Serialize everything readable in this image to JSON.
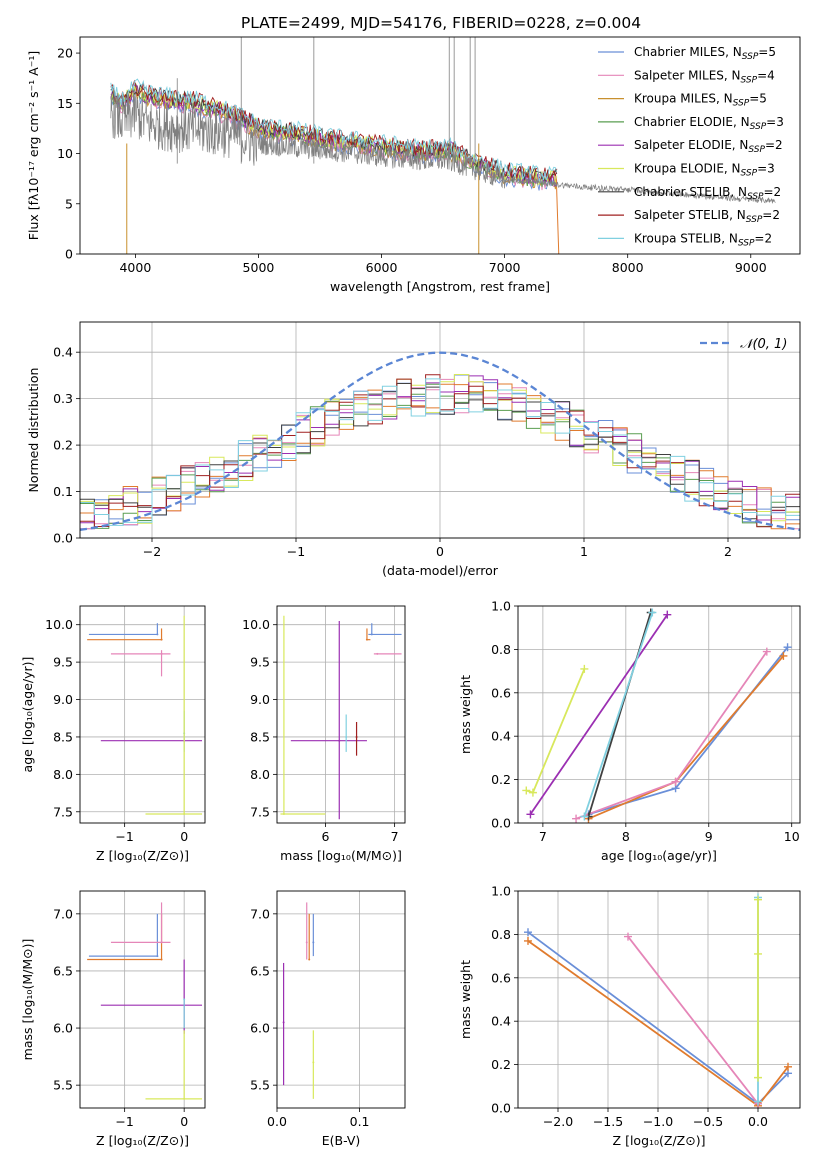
{
  "figure_title": "PLATE=2499, MJD=54176, FIBERID=0228, z=0.004",
  "colors": {
    "chabrier_miles": "#6a8fd8",
    "salpeter_miles": "#e586b8",
    "kroupa_miles": "#c8902e",
    "chabrier_elodie": "#5a9e50",
    "salpeter_elodie": "#9b2fb2",
    "kroupa_elodie": "#d8e85c",
    "chabrier_stelib": "#404040",
    "salpeter_stelib": "#a02020",
    "kroupa_stelib": "#80d0e0",
    "orange": "#e07b2e",
    "data": "#808080",
    "grid": "#b0b0b0"
  },
  "chart_data": [
    {
      "id": "spectrum",
      "type": "line",
      "title": "PLATE=2499, MJD=54176, FIBERID=0228, z=0.004",
      "xlabel": "wavelength [Angstrom, rest frame]",
      "ylabel": "Flux [fλ10⁻¹⁷ erg cm⁻² s⁻¹ A⁻¹]",
      "xlim": [
        3550,
        9400
      ],
      "ylim": [
        0,
        21.6
      ],
      "xticks": [
        4000,
        5000,
        6000,
        7000,
        8000,
        9000
      ],
      "yticks": [
        0,
        5,
        10,
        15,
        20
      ],
      "grid": false,
      "legend_position": "top-right",
      "legend": [
        {
          "label": "Chabrier MILES, N",
          "sub": "SSP",
          "post": "=5",
          "color_key": "chabrier_miles"
        },
        {
          "label": "Salpeter MILES, N",
          "sub": "SSP",
          "post": "=4",
          "color_key": "salpeter_miles"
        },
        {
          "label": "Kroupa MILES, N",
          "sub": "SSP",
          "post": "=5",
          "color_key": "kroupa_miles"
        },
        {
          "label": "Chabrier ELODIE, N",
          "sub": "SSP",
          "post": "=3",
          "color_key": "chabrier_elodie"
        },
        {
          "label": "Salpeter ELODIE, N",
          "sub": "SSP",
          "post": "=2",
          "color_key": "salpeter_elodie"
        },
        {
          "label": "Kroupa ELODIE, N",
          "sub": "SSP",
          "post": "=3",
          "color_key": "kroupa_elodie"
        },
        {
          "label": "Chabrier STELIB, N",
          "sub": "SSP",
          "post": "=2",
          "color_key": "chabrier_stelib"
        },
        {
          "label": "Salpeter STELIB, N",
          "sub": "SSP",
          "post": "=2",
          "color_key": "salpeter_stelib"
        },
        {
          "label": "Kroupa STELIB, N",
          "sub": "SSP",
          "post": "=2",
          "color_key": "kroupa_stelib"
        }
      ],
      "data_continuum": [
        [
          3800,
          14.2
        ],
        [
          3900,
          13.2
        ],
        [
          4000,
          14.0
        ],
        [
          4100,
          13.0
        ],
        [
          4300,
          12.6
        ],
        [
          4500,
          12.4
        ],
        [
          4800,
          11.9
        ],
        [
          5000,
          11.0
        ],
        [
          5300,
          10.6
        ],
        [
          5600,
          10.3
        ],
        [
          6000,
          9.7
        ],
        [
          6300,
          9.4
        ],
        [
          6550,
          9.3
        ],
        [
          6700,
          8.7
        ],
        [
          7000,
          7.4
        ],
        [
          7300,
          7.1
        ],
        [
          7600,
          6.7
        ],
        [
          8000,
          6.4
        ],
        [
          8300,
          6.1
        ],
        [
          8600,
          5.8
        ],
        [
          8900,
          5.5
        ],
        [
          9200,
          5.3
        ]
      ],
      "model_continuum": [
        [
          3800,
          15.8
        ],
        [
          3900,
          15.0
        ],
        [
          4000,
          16.3
        ],
        [
          4100,
          15.7
        ],
        [
          4300,
          15.3
        ],
        [
          4500,
          15.0
        ],
        [
          4800,
          13.8
        ],
        [
          5000,
          12.5
        ],
        [
          5300,
          12.0
        ],
        [
          5600,
          11.3
        ],
        [
          6000,
          10.7
        ],
        [
          6300,
          10.2
        ],
        [
          6550,
          10.3
        ],
        [
          6700,
          9.4
        ],
        [
          7000,
          8.0
        ],
        [
          7300,
          7.5
        ],
        [
          7430,
          7.4
        ]
      ],
      "spikes": [
        [
          4340,
          17.5
        ],
        [
          4860,
          21.6
        ],
        [
          5450,
          21.6
        ],
        [
          6550,
          21.6
        ],
        [
          6590,
          21.6
        ],
        [
          6720,
          21.6
        ],
        [
          6760,
          21.6
        ]
      ]
    },
    {
      "id": "residuals",
      "type": "histogram",
      "xlabel": "(data-model)/error",
      "ylabel": "Normed distribution",
      "xlim": [
        -2.5,
        2.5
      ],
      "ylim": [
        0,
        0.465
      ],
      "xticks": [
        -2,
        -1,
        0,
        1,
        2
      ],
      "yticks": [
        0.0,
        0.1,
        0.2,
        0.3,
        0.4
      ],
      "grid": true,
      "legend_position": "top-right",
      "gaussian_label": "𝒩(0, 1)",
      "gaussian": {
        "mean": 0,
        "sigma": 1
      }
    },
    {
      "id": "z_age",
      "type": "errorbar",
      "xlabel": "Z [log₁₀(Z/Z⊙)]",
      "ylabel": "age [log₁₀(age/yr)]",
      "xlim": [
        -1.75,
        0.35
      ],
      "ylim": [
        7.35,
        10.25
      ],
      "xticks": [
        -1,
        0
      ],
      "yticks": [
        7.5,
        8.0,
        8.5,
        9.0,
        9.5,
        10.0
      ],
      "grid": true,
      "points": [
        {
          "x": -0.45,
          "y": 9.87,
          "xerr": [
            1.15,
            0.0
          ],
          "yerr": [
            0.0,
            0.15
          ],
          "color_key": "chabrier_miles"
        },
        {
          "x": -0.38,
          "y": 9.8,
          "xerr": [
            1.25,
            0.0
          ],
          "yerr": [
            0.0,
            0.15
          ],
          "color_key": "orange"
        },
        {
          "x": -0.38,
          "y": 9.61,
          "xerr": [
            0.85,
            0.15
          ],
          "yerr": [
            0.3,
            0.05
          ],
          "color_key": "salpeter_miles"
        },
        {
          "x": 0.0,
          "y": 8.45,
          "xerr": [
            1.4,
            0.3
          ],
          "yerr": [
            0.0,
            0.0
          ],
          "color_key": "salpeter_elodie"
        },
        {
          "x": 0.0,
          "y": 8.55,
          "xerr": [
            0.0,
            0.0
          ],
          "yerr": [
            0.25,
            0.3
          ],
          "color_key": "kroupa_stelib"
        },
        {
          "x": 0.0,
          "y": 7.47,
          "xerr": [
            0.65,
            0.3
          ],
          "yerr": [
            0.0,
            2.65
          ],
          "color_key": "kroupa_elodie"
        }
      ]
    },
    {
      "id": "mass_age",
      "type": "errorbar",
      "xlabel": "mass [log₁₀(M/M⊙)]",
      "ylabel": "",
      "xlim": [
        5.3,
        7.15
      ],
      "ylim": [
        7.35,
        10.25
      ],
      "xticks": [
        6,
        7
      ],
      "yticks": [
        7.5,
        8.0,
        8.5,
        9.0,
        9.5,
        10.0
      ],
      "grid": true,
      "points": [
        {
          "x": 6.67,
          "y": 9.87,
          "xerr": [
            0.05,
            0.43
          ],
          "yerr": [
            0.0,
            0.15
          ],
          "color_key": "chabrier_miles"
        },
        {
          "x": 6.6,
          "y": 9.8,
          "xerr": [
            0.0,
            0.05
          ],
          "yerr": [
            0.0,
            0.15
          ],
          "color_key": "orange"
        },
        {
          "x": 6.75,
          "y": 9.61,
          "xerr": [
            0.05,
            0.35
          ],
          "yerr": [
            0.0,
            0.0
          ],
          "color_key": "salpeter_miles"
        },
        {
          "x": 6.2,
          "y": 8.45,
          "xerr": [
            0.7,
            0.4
          ],
          "yerr": [
            1.05,
            1.6
          ],
          "color_key": "salpeter_elodie"
        },
        {
          "x": 6.3,
          "y": 8.5,
          "xerr": [
            0.0,
            0.0
          ],
          "yerr": [
            0.2,
            0.3
          ],
          "color_key": "kroupa_stelib"
        },
        {
          "x": 6.45,
          "y": 8.5,
          "xerr": [
            0.0,
            0.0
          ],
          "yerr": [
            0.25,
            0.2
          ],
          "color_key": "salpeter_stelib"
        },
        {
          "x": 5.4,
          "y": 7.47,
          "xerr": [
            0.05,
            0.6
          ],
          "yerr": [
            0.0,
            2.65
          ],
          "color_key": "kroupa_elodie"
        }
      ]
    },
    {
      "id": "age_weight",
      "type": "line",
      "xlabel": "age [log₁₀(age/yr)]",
      "ylabel": "mass weight",
      "xlim": [
        6.7,
        10.1
      ],
      "ylim": [
        0,
        1
      ],
      "xticks": [
        7,
        8,
        9,
        10
      ],
      "yticks": [
        0.0,
        0.2,
        0.4,
        0.6,
        0.8,
        1.0
      ],
      "grid": true,
      "series": [
        {
          "color_key": "chabrier_miles",
          "x": [
            7.55,
            8.6,
            9.95
          ],
          "y": [
            0.04,
            0.16,
            0.81
          ]
        },
        {
          "color_key": "orange",
          "x": [
            7.55,
            8.6,
            9.9
          ],
          "y": [
            0.02,
            0.19,
            0.77
          ]
        },
        {
          "color_key": "salpeter_miles",
          "x": [
            7.4,
            8.6,
            9.7
          ],
          "y": [
            0.02,
            0.19,
            0.79
          ]
        },
        {
          "color_key": "salpeter_elodie",
          "x": [
            6.85,
            8.5
          ],
          "y": [
            0.04,
            0.96
          ]
        },
        {
          "color_key": "chabrier_stelib",
          "x": [
            7.55,
            8.3
          ],
          "y": [
            0.03,
            0.97
          ]
        },
        {
          "color_key": "kroupa_stelib",
          "x": [
            7.5,
            8.32
          ],
          "y": [
            0.03,
            0.97
          ]
        },
        {
          "color_key": "kroupa_elodie",
          "x": [
            6.8,
            6.88,
            7.5
          ],
          "y": [
            0.15,
            0.14,
            0.71
          ]
        }
      ]
    },
    {
      "id": "z_mass",
      "type": "errorbar",
      "xlabel": "Z [log₁₀(Z/Z⊙)]",
      "ylabel": "mass [log₁₀(M/M⊙)]",
      "xlim": [
        -1.75,
        0.35
      ],
      "ylim": [
        5.3,
        7.2
      ],
      "xticks": [
        -1,
        0
      ],
      "yticks": [
        5.5,
        6.0,
        6.5,
        7.0
      ],
      "grid": true,
      "points": [
        {
          "x": -0.45,
          "y": 6.63,
          "xerr": [
            1.15,
            0.0
          ],
          "yerr": [
            0.0,
            0.37
          ],
          "color_key": "chabrier_miles"
        },
        {
          "x": -0.38,
          "y": 6.6,
          "xerr": [
            1.25,
            0.0
          ],
          "yerr": [
            0.0,
            0.4
          ],
          "color_key": "orange"
        },
        {
          "x": -0.38,
          "y": 6.75,
          "xerr": [
            0.85,
            0.15
          ],
          "yerr": [
            0.0,
            0.35
          ],
          "color_key": "salpeter_miles"
        },
        {
          "x": 0.0,
          "y": 6.2,
          "xerr": [
            1.4,
            0.3
          ],
          "yerr": [
            0.25,
            0.4
          ],
          "color_key": "salpeter_elodie"
        },
        {
          "x": 0.0,
          "y": 6.25,
          "xerr": [
            0.0,
            0.0
          ],
          "yerr": [
            0.25,
            0.0
          ],
          "color_key": "kroupa_stelib"
        },
        {
          "x": 0.0,
          "y": 5.38,
          "xerr": [
            0.65,
            0.3
          ],
          "yerr": [
            0.0,
            0.6
          ],
          "color_key": "kroupa_elodie"
        }
      ]
    },
    {
      "id": "ebv_mass",
      "type": "errorbar",
      "xlabel": "E(B-V)",
      "ylabel": "",
      "xlim": [
        0,
        0.155
      ],
      "ylim": [
        5.3,
        7.2
      ],
      "xticks": [
        0.0,
        0.1
      ],
      "yticks": [
        5.5,
        6.0,
        6.5,
        7.0
      ],
      "grid": true,
      "points": [
        {
          "x": 0.044,
          "y": 6.75,
          "xerr": [
            0.0,
            0.0
          ],
          "yerr": [
            0.12,
            0.25
          ],
          "color_key": "chabrier_miles"
        },
        {
          "x": 0.039,
          "y": 6.6,
          "xerr": [
            0.0,
            0.0
          ],
          "yerr": [
            0.0,
            0.4
          ],
          "color_key": "orange"
        },
        {
          "x": 0.036,
          "y": 6.75,
          "xerr": [
            0.0,
            0.0
          ],
          "yerr": [
            0.15,
            0.35
          ],
          "color_key": "salpeter_miles"
        },
        {
          "x": 0.008,
          "y": 6.05,
          "xerr": [
            0.0,
            0.0
          ],
          "yerr": [
            0.55,
            0.52
          ],
          "color_key": "salpeter_elodie"
        },
        {
          "x": 0.044,
          "y": 5.7,
          "xerr": [
            0.0,
            0.0
          ],
          "yerr": [
            0.32,
            0.28
          ],
          "color_key": "kroupa_elodie"
        }
      ]
    },
    {
      "id": "z_weight",
      "type": "line",
      "xlabel": "Z [log₁₀(Z/Z⊙)]",
      "ylabel": "mass weight",
      "xlim": [
        -2.4,
        0.42
      ],
      "ylim": [
        0,
        1
      ],
      "xticks": [
        -2.0,
        -1.5,
        -1.0,
        -0.5,
        0.0
      ],
      "yticks": [
        0.0,
        0.2,
        0.4,
        0.6,
        0.8,
        1.0
      ],
      "grid": true,
      "series": [
        {
          "color_key": "chabrier_miles",
          "x": [
            -2.3,
            0.0,
            0.3
          ],
          "y": [
            0.81,
            0.02,
            0.16
          ]
        },
        {
          "color_key": "orange",
          "x": [
            -2.3,
            0.0,
            0.3
          ],
          "y": [
            0.77,
            0.01,
            0.19
          ]
        },
        {
          "color_key": "salpeter_miles",
          "x": [
            -1.3,
            0.0
          ],
          "y": [
            0.79,
            0.02
          ]
        },
        {
          "color_key": "kroupa_stelib",
          "x": [
            0.0,
            0.0
          ],
          "y": [
            0.03,
            0.97
          ]
        },
        {
          "color_key": "kroupa_elodie",
          "x": [
            0.0,
            0.0,
            0.0
          ],
          "y": [
            0.14,
            0.71,
            0.96
          ]
        }
      ]
    }
  ]
}
